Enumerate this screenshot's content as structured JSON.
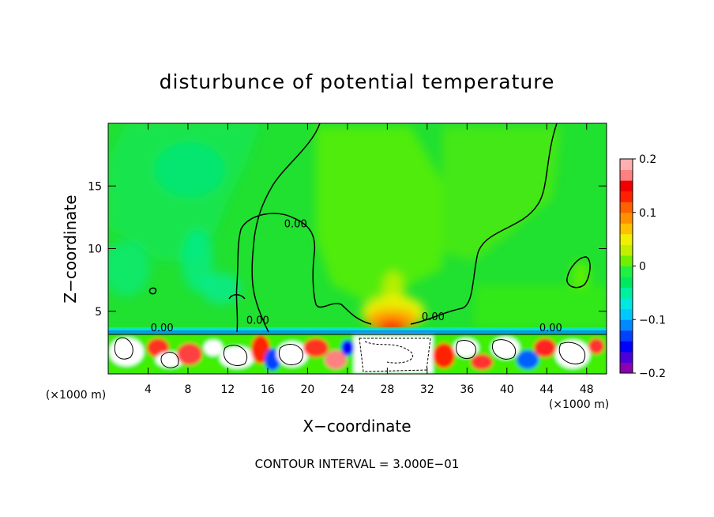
{
  "chart_data": {
    "type": "heatmap",
    "title": "disturbunce of potential temperature",
    "xlabel": "X−coordinate",
    "ylabel": "Z−coordinate",
    "x_unit_left": "(×1000 m)",
    "x_unit_right": "(×1000 m)",
    "xlim": [
      0,
      50
    ],
    "ylim": [
      0,
      20
    ],
    "x_ticks": [
      4,
      8,
      12,
      16,
      20,
      24,
      28,
      32,
      36,
      40,
      44,
      48
    ],
    "y_ticks": [
      5,
      10,
      15
    ],
    "colorbar": {
      "range": [
        -0.2,
        0.2
      ],
      "tick_values": [
        0.2,
        0.1,
        0,
        -0.1,
        -0.2
      ],
      "tick_labels": [
        "0.2",
        "0.1",
        "0",
        "−0.1",
        "−0.2"
      ],
      "colors": [
        "#8b00b0",
        "#4b00d8",
        "#0000ff",
        "#0040ff",
        "#0088ff",
        "#00c8ff",
        "#00e8e0",
        "#00f0a0",
        "#00e860",
        "#20f040",
        "#70f000",
        "#c0f000",
        "#f0f000",
        "#ffc000",
        "#ff9000",
        "#ff6000",
        "#ff2000",
        "#f00000",
        "#ff8080",
        "#ffb0b0"
      ]
    },
    "contour_labels": [
      {
        "text": "0.00",
        "x": 18.8,
        "y": 11.7
      },
      {
        "text": "0.00",
        "x": 32.6,
        "y": 4.3
      },
      {
        "text": "0.00",
        "x": 44.4,
        "y": 3.4
      },
      {
        "text": "0.00",
        "x": 5.4,
        "y": 3.4
      },
      {
        "text": "0.00",
        "x": 15.0,
        "y": 4.0
      }
    ],
    "footer": "CONTOUR INTERVAL = 3.000E−01"
  }
}
